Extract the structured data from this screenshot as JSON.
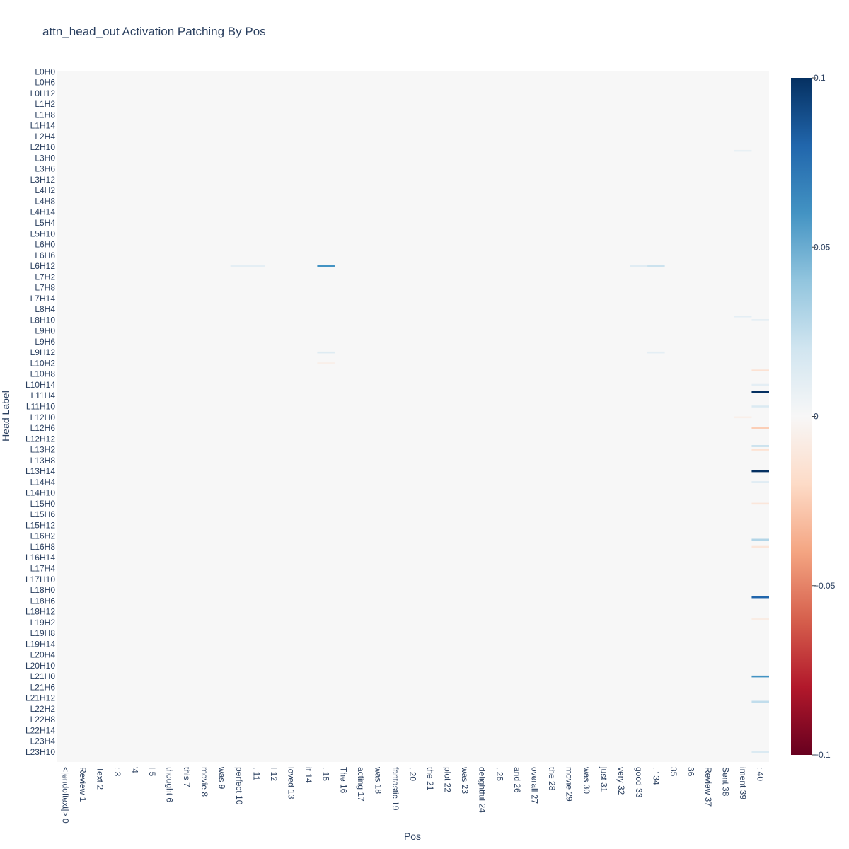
{
  "chart_data": {
    "type": "heatmap",
    "title": "attn_head_out Activation Patching By Pos",
    "xlabel": "Pos",
    "ylabel": "Head Label",
    "colorscale": "RdBu",
    "colorscale_colors": [
      "#67001f",
      "#b2182b",
      "#d6604d",
      "#f4a582",
      "#fddbc7",
      "#f7f7f7",
      "#d1e5f0",
      "#92c5de",
      "#4393c3",
      "#2166ac",
      "#053061"
    ],
    "zlim": [
      -0.1,
      0.1
    ],
    "colorbar_ticks": [
      0.1,
      0.05,
      0,
      -0.05,
      -0.1
    ],
    "colorbar_tick_labels": [
      "0.1",
      "0.05",
      "0",
      "−0.05",
      "−0.1"
    ],
    "x_categories": [
      "<|endoftext|> 0",
      "Review 1",
      "Text 2",
      ": 3",
      " '4",
      "I 5",
      "thought 6",
      "this 7",
      "movie 8",
      "was 9",
      "perfect 10",
      ", 11",
      "I 12",
      "loved 13",
      "it 14",
      ". 15",
      "The 16",
      "acting 17",
      "was 18",
      "fantastic 19",
      ", 20",
      "the 21",
      "plot 22",
      "was 23",
      "delightful 24",
      ", 25",
      "and 26",
      "overall 27",
      "the 28",
      "movie 29",
      "was 30",
      "just 31",
      "very 32",
      "good 33",
      ". ' 34",
      "35",
      "36",
      "Review 37",
      "Sent 38",
      "iment 39",
      ": 40"
    ],
    "y_tick_labels": [
      "L0H0",
      "L0H6",
      "L0H12",
      "L1H2",
      "L1H8",
      "L1H14",
      "L2H4",
      "L2H10",
      "L3H0",
      "L3H6",
      "L3H12",
      "L4H2",
      "L4H8",
      "L4H14",
      "L5H4",
      "L5H10",
      "L6H0",
      "L6H6",
      "L6H12",
      "L7H2",
      "L7H8",
      "L7H14",
      "L8H4",
      "L8H10",
      "L9H0",
      "L9H6",
      "L9H12",
      "L10H2",
      "L10H8",
      "L10H14",
      "L11H4",
      "L11H10",
      "L12H0",
      "L12H6",
      "L12H12",
      "L13H2",
      "L13H8",
      "L13H14",
      "L14H4",
      "L14H10",
      "L15H0",
      "L15H6",
      "L15H12",
      "L16H2",
      "L16H8",
      "L16H14",
      "L17H4",
      "L17H10",
      "L18H0",
      "L18H6",
      "L18H12",
      "L19H2",
      "L19H8",
      "L19H14",
      "L20H4",
      "L20H10",
      "L21H0",
      "L21H6",
      "L21H12",
      "L22H2",
      "L22H8",
      "L22H14",
      "L23H4",
      "L23H10"
    ],
    "layers": 24,
    "heads_per_layer": 16,
    "default_value": 0,
    "cells": [
      {
        "pos": 15,
        "head": "L6H12",
        "value": 0.06
      },
      {
        "pos": 10,
        "head": "L6H12",
        "value": 0.01
      },
      {
        "pos": 11,
        "head": "L6H12",
        "value": 0.01
      },
      {
        "pos": 33,
        "head": "L6H12",
        "value": 0.012
      },
      {
        "pos": 34,
        "head": "L6H12",
        "value": 0.022
      },
      {
        "pos": 15,
        "head": "L9H12",
        "value": 0.013
      },
      {
        "pos": 34,
        "head": "L9H12",
        "value": 0.01
      },
      {
        "pos": 15,
        "head": "L10H2",
        "value": -0.006
      },
      {
        "pos": 40,
        "head": "L11H2",
        "value": 0.1
      },
      {
        "pos": 40,
        "head": "L13H14",
        "value": 0.1
      },
      {
        "pos": 40,
        "head": "L18H4",
        "value": 0.08
      },
      {
        "pos": 40,
        "head": "L21H0",
        "value": 0.06
      },
      {
        "pos": 40,
        "head": "L12H6",
        "value": -0.025
      },
      {
        "pos": 40,
        "head": "L13H0",
        "value": 0.025
      },
      {
        "pos": 40,
        "head": "L13H2",
        "value": -0.015
      },
      {
        "pos": 40,
        "head": "L16H4",
        "value": 0.03
      },
      {
        "pos": 40,
        "head": "L16H8",
        "value": -0.012
      },
      {
        "pos": 40,
        "head": "L21H14",
        "value": 0.025
      },
      {
        "pos": 40,
        "head": "L11H10",
        "value": 0.015
      },
      {
        "pos": 40,
        "head": "L23H10",
        "value": 0.015
      },
      {
        "pos": 40,
        "head": "L10H6",
        "value": -0.015
      },
      {
        "pos": 40,
        "head": "L8H10",
        "value": 0.01
      },
      {
        "pos": 40,
        "head": "L14H4",
        "value": 0.012
      },
      {
        "pos": 40,
        "head": "L15H0",
        "value": -0.012
      },
      {
        "pos": 40,
        "head": "L19H0",
        "value": -0.008
      },
      {
        "pos": 40,
        "head": "L10H14",
        "value": 0.01
      },
      {
        "pos": 39,
        "head": "L8H8",
        "value": 0.01
      },
      {
        "pos": 39,
        "head": "L2H12",
        "value": 0.008
      },
      {
        "pos": 39,
        "head": "L12H0",
        "value": -0.006
      }
    ]
  }
}
